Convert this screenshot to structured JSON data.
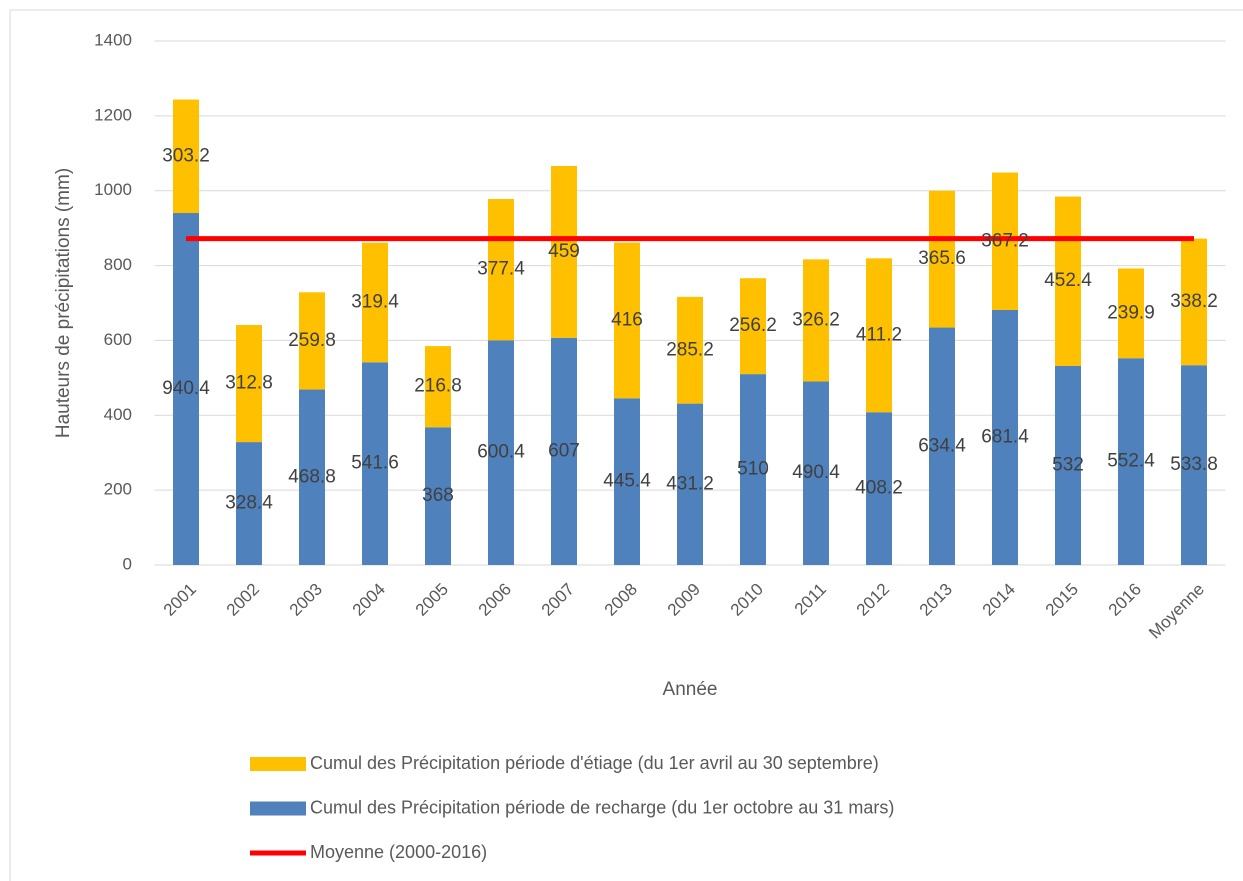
{
  "chart_data": {
    "type": "bar",
    "stacked": true,
    "x_label": "Année",
    "y_label": "Hauteurs de précipitations (mm)",
    "categories": [
      "2001",
      "2002",
      "2003",
      "2004",
      "2005",
      "2006",
      "2007",
      "2008",
      "2009",
      "2010",
      "2011",
      "2012",
      "2013",
      "2014",
      "2015",
      "2016",
      "Moyenne"
    ],
    "series": [
      {
        "name": "Cumul des Précipitation période de recharge (du 1er octobre au 31 mars)",
        "color": "#4f81bd",
        "type": "bar",
        "values": [
          940.4,
          328.4,
          468.8,
          541.6,
          368,
          600.4,
          607,
          445.4,
          431.2,
          510,
          490.4,
          408.2,
          634.4,
          681.4,
          532,
          552.4,
          533.8
        ]
      },
      {
        "name": "Cumul des Précipitation période d'étiage (du 1er avril au 30 septembre)",
        "color": "#ffc000",
        "type": "bar",
        "values": [
          303.2,
          312.8,
          259.8,
          319.4,
          216.8,
          377.4,
          459,
          416,
          285.2,
          256.2,
          326.2,
          411.2,
          365.6,
          367.2,
          452.4,
          239.9,
          338.2
        ]
      },
      {
        "name": "Moyenne (2000-2016)",
        "color": "#ff0000",
        "type": "line",
        "values": [
          872,
          872,
          872,
          872,
          872,
          872,
          872,
          872,
          872,
          872,
          872,
          872,
          872,
          872,
          872,
          872,
          872
        ]
      }
    ],
    "ylim": [
      0,
      1400
    ],
    "yticks": [
      0,
      200,
      400,
      600,
      800,
      1000,
      1200,
      1400
    ],
    "grid": true,
    "legend": "bottom"
  }
}
